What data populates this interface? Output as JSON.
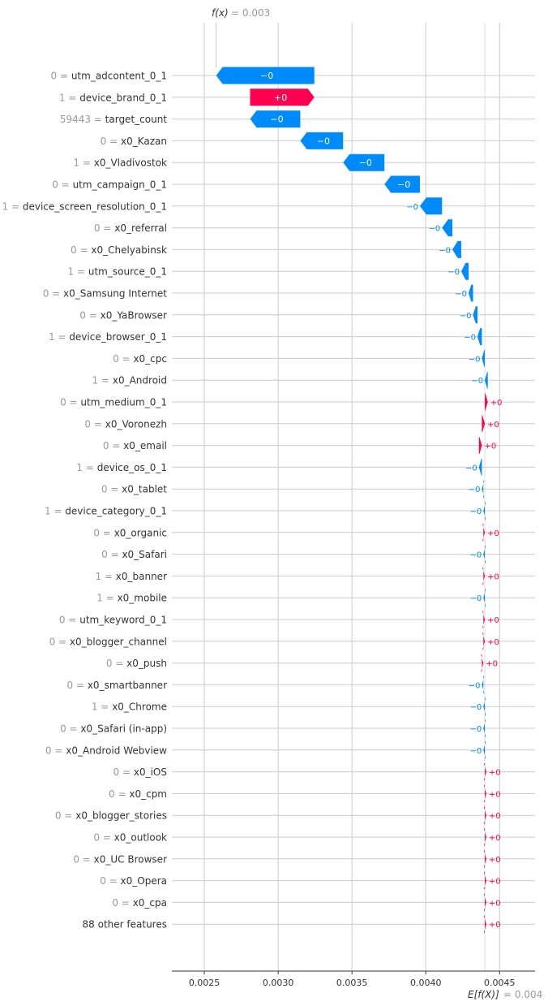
{
  "chart_data": {
    "type": "waterfall",
    "fx_label": "f(x)",
    "fx_value_text": "= 0.003",
    "fx_value": 0.00258,
    "efx_label": "E[f(X)]",
    "efx_value_text": "= 0.004",
    "efx_value": 0.0044,
    "x_ticks": [
      "0.0025",
      "0.0030",
      "0.0035",
      "0.0040",
      "0.0045"
    ],
    "x_tick_values": [
      0.0025,
      0.003,
      0.0035,
      0.004,
      0.0045
    ],
    "xlim": [
      0.00228,
      0.00474
    ],
    "colors": {
      "negative": "#008bfb",
      "positive": "#ff0051",
      "grid": "#cccccc",
      "muted": "#999999",
      "text": "#333333"
    },
    "features": [
      {
        "value": "0",
        "name": "utm_adcontent_0_1",
        "left": 0.00258,
        "right": 0.003245,
        "sign": "neg",
        "label": "−0"
      },
      {
        "value": "1",
        "name": "device_brand_0_1",
        "left": 0.00281,
        "right": 0.003245,
        "sign": "pos",
        "label": "+0"
      },
      {
        "value": "59443",
        "name": "target_count",
        "left": 0.00281,
        "right": 0.00315,
        "sign": "neg",
        "label": "−0"
      },
      {
        "value": "0",
        "name": "x0_Kazan",
        "left": 0.00315,
        "right": 0.00344,
        "sign": "neg",
        "label": "−0"
      },
      {
        "value": "1",
        "name": "x0_Vladivostok",
        "left": 0.00344,
        "right": 0.00372,
        "sign": "neg",
        "label": "−0"
      },
      {
        "value": "0",
        "name": "utm_campaign_0_1",
        "left": 0.00372,
        "right": 0.00396,
        "sign": "neg",
        "label": "−0"
      },
      {
        "value": "1",
        "name": "device_screen_resolution_0_1",
        "left": 0.00396,
        "right": 0.00411,
        "sign": "neg",
        "label": "−0"
      },
      {
        "value": "0",
        "name": "x0_referral",
        "left": 0.00411,
        "right": 0.00418,
        "sign": "neg",
        "label": "−0"
      },
      {
        "value": "0",
        "name": "x0_Chelyabinsk",
        "left": 0.00418,
        "right": 0.00424,
        "sign": "neg",
        "label": "−0"
      },
      {
        "value": "1",
        "name": "utm_source_0_1",
        "left": 0.00424,
        "right": 0.00429,
        "sign": "neg",
        "label": "−0"
      },
      {
        "value": "0",
        "name": "x0_Samsung Internet",
        "left": 0.00429,
        "right": 0.00432,
        "sign": "neg",
        "label": "−0"
      },
      {
        "value": "0",
        "name": "x0_YaBrowser",
        "left": 0.00432,
        "right": 0.00435,
        "sign": "neg",
        "label": "−0"
      },
      {
        "value": "1",
        "name": "device_browser_0_1",
        "left": 0.00435,
        "right": 0.00438,
        "sign": "neg",
        "label": "−0"
      },
      {
        "value": "0",
        "name": "x0_cpc",
        "left": 0.00438,
        "right": 0.0044,
        "sign": "neg",
        "label": "−0"
      },
      {
        "value": "1",
        "name": "x0_Android",
        "left": 0.0044,
        "right": 0.00442,
        "sign": "neg",
        "label": "−0"
      },
      {
        "value": "0",
        "name": "utm_medium_0_1",
        "left": 0.0044,
        "right": 0.00442,
        "sign": "pos",
        "label": "+0"
      },
      {
        "value": "0",
        "name": "x0_Voronezh",
        "left": 0.00438,
        "right": 0.0044,
        "sign": "pos",
        "label": "+0"
      },
      {
        "value": "0",
        "name": "x0_email",
        "left": 0.00436,
        "right": 0.00438,
        "sign": "pos",
        "label": "+0"
      },
      {
        "value": "1",
        "name": "device_os_0_1",
        "left": 0.00436,
        "right": 0.00438,
        "sign": "neg",
        "label": "−0"
      },
      {
        "value": "0",
        "name": "x0_tablet",
        "left": 0.00438,
        "right": 0.00439,
        "sign": "neg",
        "label": "−0"
      },
      {
        "value": "1",
        "name": "device_category_0_1",
        "left": 0.00439,
        "right": 0.0044,
        "sign": "neg",
        "label": "−0"
      },
      {
        "value": "0",
        "name": "x0_organic",
        "left": 0.00439,
        "right": 0.0044,
        "sign": "pos",
        "label": "+0"
      },
      {
        "value": "0",
        "name": "x0_Safari",
        "left": 0.00439,
        "right": 0.0044,
        "sign": "neg",
        "label": "−0"
      },
      {
        "value": "1",
        "name": "x0_banner",
        "left": 0.00439,
        "right": 0.0044,
        "sign": "pos",
        "label": "+0"
      },
      {
        "value": "1",
        "name": "x0_mobile",
        "left": 0.00439,
        "right": 0.0044,
        "sign": "neg",
        "label": "−0"
      },
      {
        "value": "0",
        "name": "utm_keyword_0_1",
        "left": 0.00439,
        "right": 0.0044,
        "sign": "pos",
        "label": "+0"
      },
      {
        "value": "0",
        "name": "x0_blogger_channel",
        "left": 0.00439,
        "right": 0.0044,
        "sign": "pos",
        "label": "+0"
      },
      {
        "value": "0",
        "name": "x0_push",
        "left": 0.00438,
        "right": 0.00439,
        "sign": "pos",
        "label": "+0"
      },
      {
        "value": "0",
        "name": "x0_smartbanner",
        "left": 0.00438,
        "right": 0.00439,
        "sign": "neg",
        "label": "−0"
      },
      {
        "value": "1",
        "name": "x0_Chrome",
        "left": 0.00439,
        "right": 0.0044,
        "sign": "neg",
        "label": "−0"
      },
      {
        "value": "0",
        "name": "x0_Safari (in-app)",
        "left": 0.00439,
        "right": 0.0044,
        "sign": "neg",
        "label": "−0"
      },
      {
        "value": "0",
        "name": "x0_Android Webview",
        "left": 0.00439,
        "right": 0.0044,
        "sign": "neg",
        "label": "−0"
      },
      {
        "value": "0",
        "name": "x0_iOS",
        "left": 0.0044,
        "right": 0.00441,
        "sign": "pos",
        "label": "+0"
      },
      {
        "value": "0",
        "name": "x0_cpm",
        "left": 0.0044,
        "right": 0.00441,
        "sign": "pos",
        "label": "+0"
      },
      {
        "value": "0",
        "name": "x0_blogger_stories",
        "left": 0.0044,
        "right": 0.00441,
        "sign": "pos",
        "label": "+0"
      },
      {
        "value": "0",
        "name": "x0_outlook",
        "left": 0.0044,
        "right": 0.00441,
        "sign": "pos",
        "label": "+0"
      },
      {
        "value": "0",
        "name": "x0_UC Browser",
        "left": 0.0044,
        "right": 0.00441,
        "sign": "pos",
        "label": "+0"
      },
      {
        "value": "0",
        "name": "x0_Opera",
        "left": 0.0044,
        "right": 0.00441,
        "sign": "pos",
        "label": "+0"
      },
      {
        "value": "0",
        "name": "x0_cpa",
        "left": 0.0044,
        "right": 0.00441,
        "sign": "pos",
        "label": "+0"
      },
      {
        "value": "",
        "name": "88 other features",
        "left": 0.0044,
        "right": 0.00441,
        "sign": "pos",
        "label": "+0"
      }
    ]
  }
}
